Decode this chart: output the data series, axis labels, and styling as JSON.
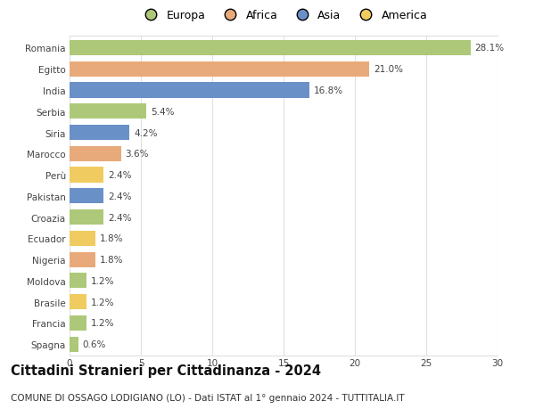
{
  "title": "Cittadini Stranieri per Cittadinanza - 2024",
  "subtitle": "COMUNE DI OSSAGO LODIGIANO (LO) - Dati ISTAT al 1° gennaio 2024 - TUTTITALIA.IT",
  "countries": [
    "Romania",
    "Egitto",
    "India",
    "Serbia",
    "Siria",
    "Marocco",
    "Perù",
    "Pakistan",
    "Croazia",
    "Ecuador",
    "Nigeria",
    "Moldova",
    "Brasile",
    "Francia",
    "Spagna"
  ],
  "values": [
    28.1,
    21.0,
    16.8,
    5.4,
    4.2,
    3.6,
    2.4,
    2.4,
    2.4,
    1.8,
    1.8,
    1.2,
    1.2,
    1.2,
    0.6
  ],
  "continents": [
    "Europa",
    "Africa",
    "Asia",
    "Europa",
    "Asia",
    "Africa",
    "America",
    "Asia",
    "Europa",
    "America",
    "Africa",
    "Europa",
    "America",
    "Europa",
    "Europa"
  ],
  "continent_colors": {
    "Europa": "#adc878",
    "Africa": "#e8aa7a",
    "Asia": "#6a90c8",
    "America": "#f0cc60"
  },
  "legend_order": [
    "Europa",
    "Africa",
    "Asia",
    "America"
  ],
  "xlim": [
    0,
    30
  ],
  "xticks": [
    0,
    5,
    10,
    15,
    20,
    25,
    30
  ],
  "bar_height": 0.72,
  "background_color": "#ffffff",
  "grid_color": "#e0e0e0",
  "label_fontsize": 7.5,
  "tick_fontsize": 7.5,
  "title_fontsize": 10.5,
  "subtitle_fontsize": 7.5,
  "legend_fontsize": 9.0
}
